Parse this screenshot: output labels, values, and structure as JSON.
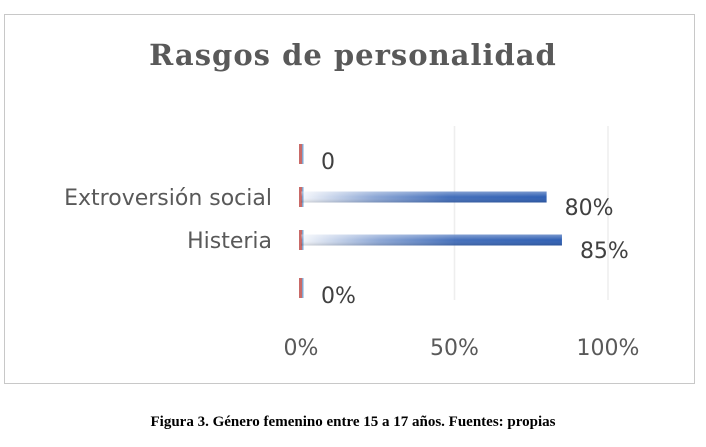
{
  "chart_data": {
    "type": "bar",
    "orientation": "horizontal",
    "title": "Rasgos de personalidad",
    "categories": [
      "",
      "Extroversión social",
      "Histeria",
      ""
    ],
    "series": [
      {
        "values": [
          0,
          0.8,
          0.85,
          0
        ],
        "data_labels": [
          "0",
          "80%",
          "85%",
          "0%"
        ],
        "color": "#2f5fb3"
      }
    ],
    "xlim": [
      0,
      1
    ],
    "x_ticks": [
      0,
      0.5,
      1
    ],
    "x_tick_labels": [
      "0%",
      "50%",
      "100%"
    ],
    "grid": true,
    "legend": "none",
    "zero_marker_color": "#c0504d"
  },
  "caption": "Figura 3. Género femenino entre 15 a 17 años. Fuentes: propias"
}
